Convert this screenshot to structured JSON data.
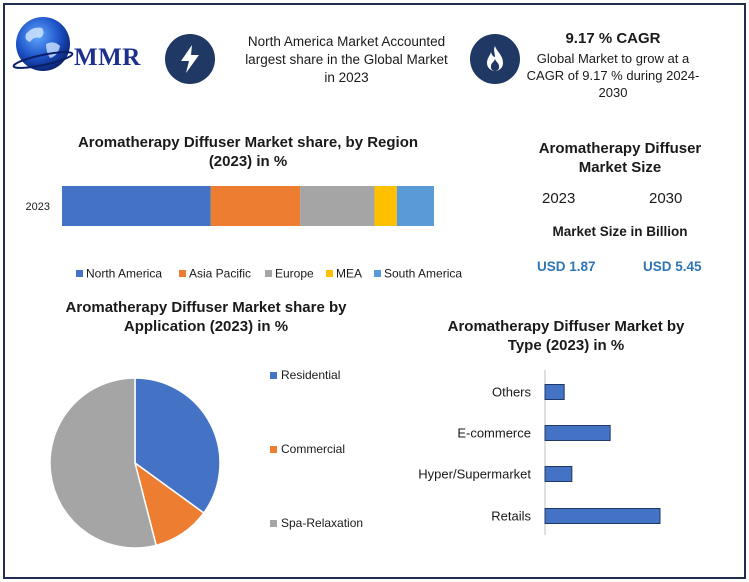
{
  "header": {
    "logo_text": "MMR",
    "info_text": "North America Market Accounted largest share in the Global Market in 2023",
    "cagr_title": "9.17 % CAGR",
    "cagr_text": "Global Market to grow at a CAGR of 9.17 % during 2024-2030",
    "icons": {
      "left": "lightning-bolt-icon",
      "right": "flame-icon"
    },
    "icon_bg": "#1f3864"
  },
  "market_size": {
    "title": "Aromatherapy Diffuser Market Size",
    "year_a": "2023",
    "year_b": "2030",
    "unit_label": "Market Size in Billion",
    "value_a": "USD 1.87",
    "value_b": "USD 5.45"
  },
  "chart_data": [
    {
      "type": "bar",
      "orientation": "horizontal",
      "stacked": true,
      "title": "Aromatherapy Diffuser Market share, by Region (2023) in %",
      "categories": [
        "2023"
      ],
      "series": [
        {
          "name": "North America",
          "values": [
            40
          ],
          "color": "#4472c4"
        },
        {
          "name": "Asia Pacific",
          "values": [
            24
          ],
          "color": "#ed7d31"
        },
        {
          "name": "Europe",
          "values": [
            20
          ],
          "color": "#a5a5a5"
        },
        {
          "name": "MEA",
          "values": [
            6
          ],
          "color": "#ffc000"
        },
        {
          "name": "South America",
          "values": [
            10
          ],
          "color": "#5b9bd5"
        }
      ],
      "legend": "bottom"
    },
    {
      "type": "pie",
      "title": "Aromatherapy Diffuser Market share by Application (2023) in %",
      "labels": [
        "Residential",
        "Commercial",
        "Spa-Relaxation"
      ],
      "values": [
        35,
        11,
        54
      ],
      "colors": [
        "#4472c4",
        "#ed7d31",
        "#a5a5a5"
      ],
      "legend": "right"
    },
    {
      "type": "bar",
      "orientation": "horizontal",
      "title": "Aromatherapy Diffuser Market by Type (2023) in %",
      "categories": [
        "Others",
        "E-commerce",
        "Hyper/Supermarket",
        "Retails"
      ],
      "values": [
        5,
        17,
        7,
        30
      ],
      "color": "#4472c4"
    }
  ]
}
